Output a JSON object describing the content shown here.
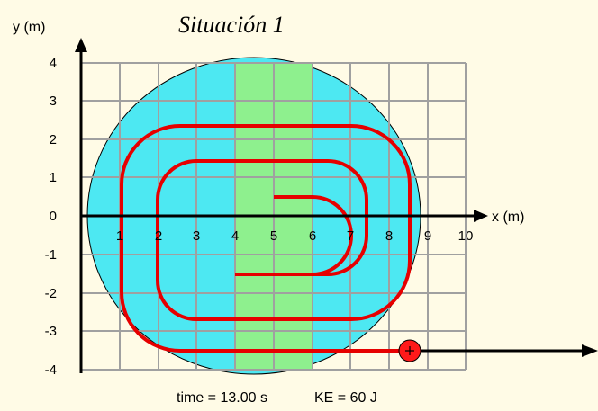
{
  "title": "Situación 1",
  "axes": {
    "x_label": "x (m)",
    "y_label": "y (m)",
    "x_ticks": [
      "1",
      "2",
      "3",
      "4",
      "5",
      "6",
      "7",
      "8",
      "9",
      "10"
    ],
    "y_ticks": [
      "4",
      "3",
      "2",
      "1",
      "0",
      "-1",
      "-2",
      "-3",
      "-4"
    ]
  },
  "status": {
    "time_text": "time = 13.00 s",
    "ke_text": "KE = 60 J"
  },
  "colors": {
    "background": "#fffbe6",
    "disk": "#4de8f2",
    "band": "#8ef08e",
    "grid": "#a0a0a0",
    "path": "#e60000",
    "ball": "#ff1a1a"
  }
}
